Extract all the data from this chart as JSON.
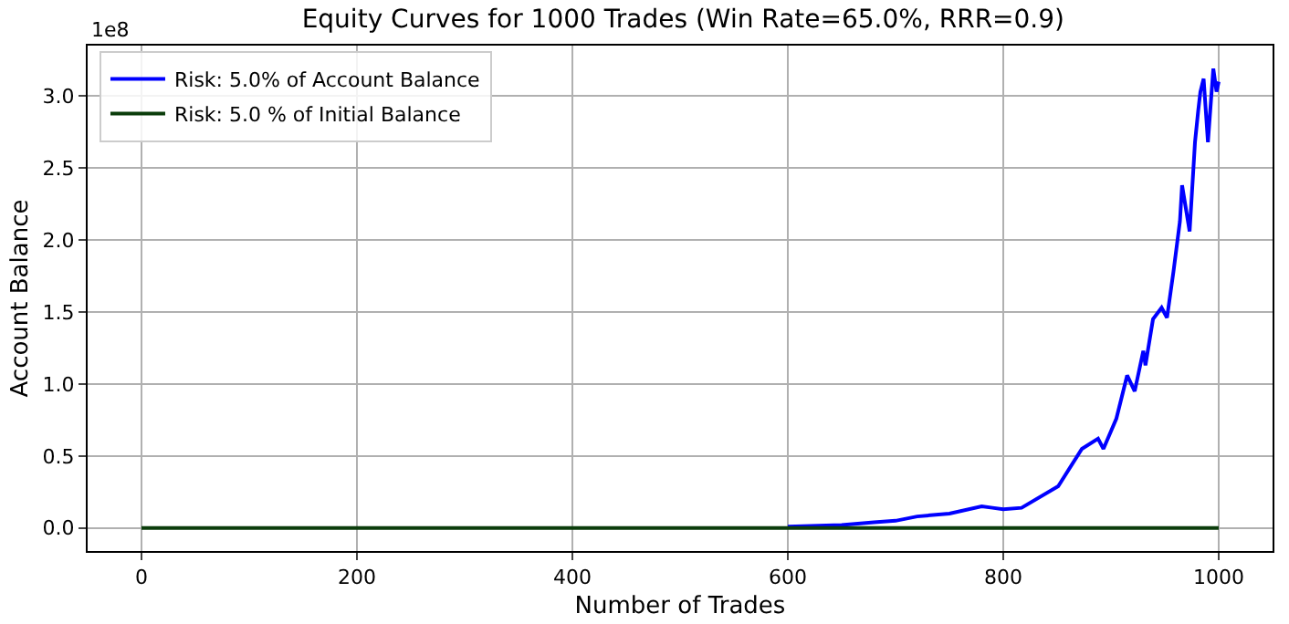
{
  "chart_data": {
    "type": "line",
    "title": "Equity Curves for 1000 Trades (Win Rate=65.0%, RRR=0.9)",
    "xlabel": "Number of Trades",
    "ylabel": "Account Balance",
    "annotations": [
      "1e8"
    ],
    "xlim": [
      -50,
      1050
    ],
    "xticks": [
      0,
      200,
      400,
      600,
      800,
      1000
    ],
    "ylim": [
      -0.16,
      3.35
    ],
    "yticks": [
      {
        "value": 0,
        "label": "0.0"
      },
      {
        "value": 0.5,
        "label": "0.5"
      },
      {
        "value": 1,
        "label": "1.0"
      },
      {
        "value": 1.5,
        "label": "1.5"
      },
      {
        "value": 2,
        "label": "2.0"
      },
      {
        "value": 2.5,
        "label": "2.5"
      },
      {
        "value": 3,
        "label": "3.0"
      }
    ],
    "grid": true,
    "legend": "top left",
    "marker": "none",
    "line_style": "solid",
    "series": [
      {
        "name": "Risk: 5.0% of Account Balance",
        "color": "#0000ff",
        "x": [
          600,
          650,
          680,
          700,
          720,
          750,
          780,
          790,
          800,
          817,
          851,
          873,
          888,
          893,
          905,
          915,
          922,
          930,
          932,
          939,
          947,
          952,
          958,
          964,
          966,
          973,
          978,
          981,
          983,
          986,
          990,
          995,
          998,
          1000
        ],
        "values": [
          0.01,
          0.02,
          0.04,
          0.05,
          0.08,
          0.1,
          0.15,
          0.14,
          0.13,
          0.14,
          0.29,
          0.55,
          0.62,
          0.55,
          0.76,
          1.06,
          0.95,
          1.23,
          1.13,
          1.45,
          1.53,
          1.46,
          1.78,
          2.13,
          2.38,
          2.06,
          2.68,
          2.9,
          3.03,
          3.12,
          2.68,
          3.19,
          3.03,
          3.1
        ]
      },
      {
        "name": "Risk: 5.0 % of Initial Balance",
        "color": "#0b3d0b",
        "x": [
          0,
          1000
        ],
        "values": [
          0,
          0
        ]
      }
    ]
  }
}
